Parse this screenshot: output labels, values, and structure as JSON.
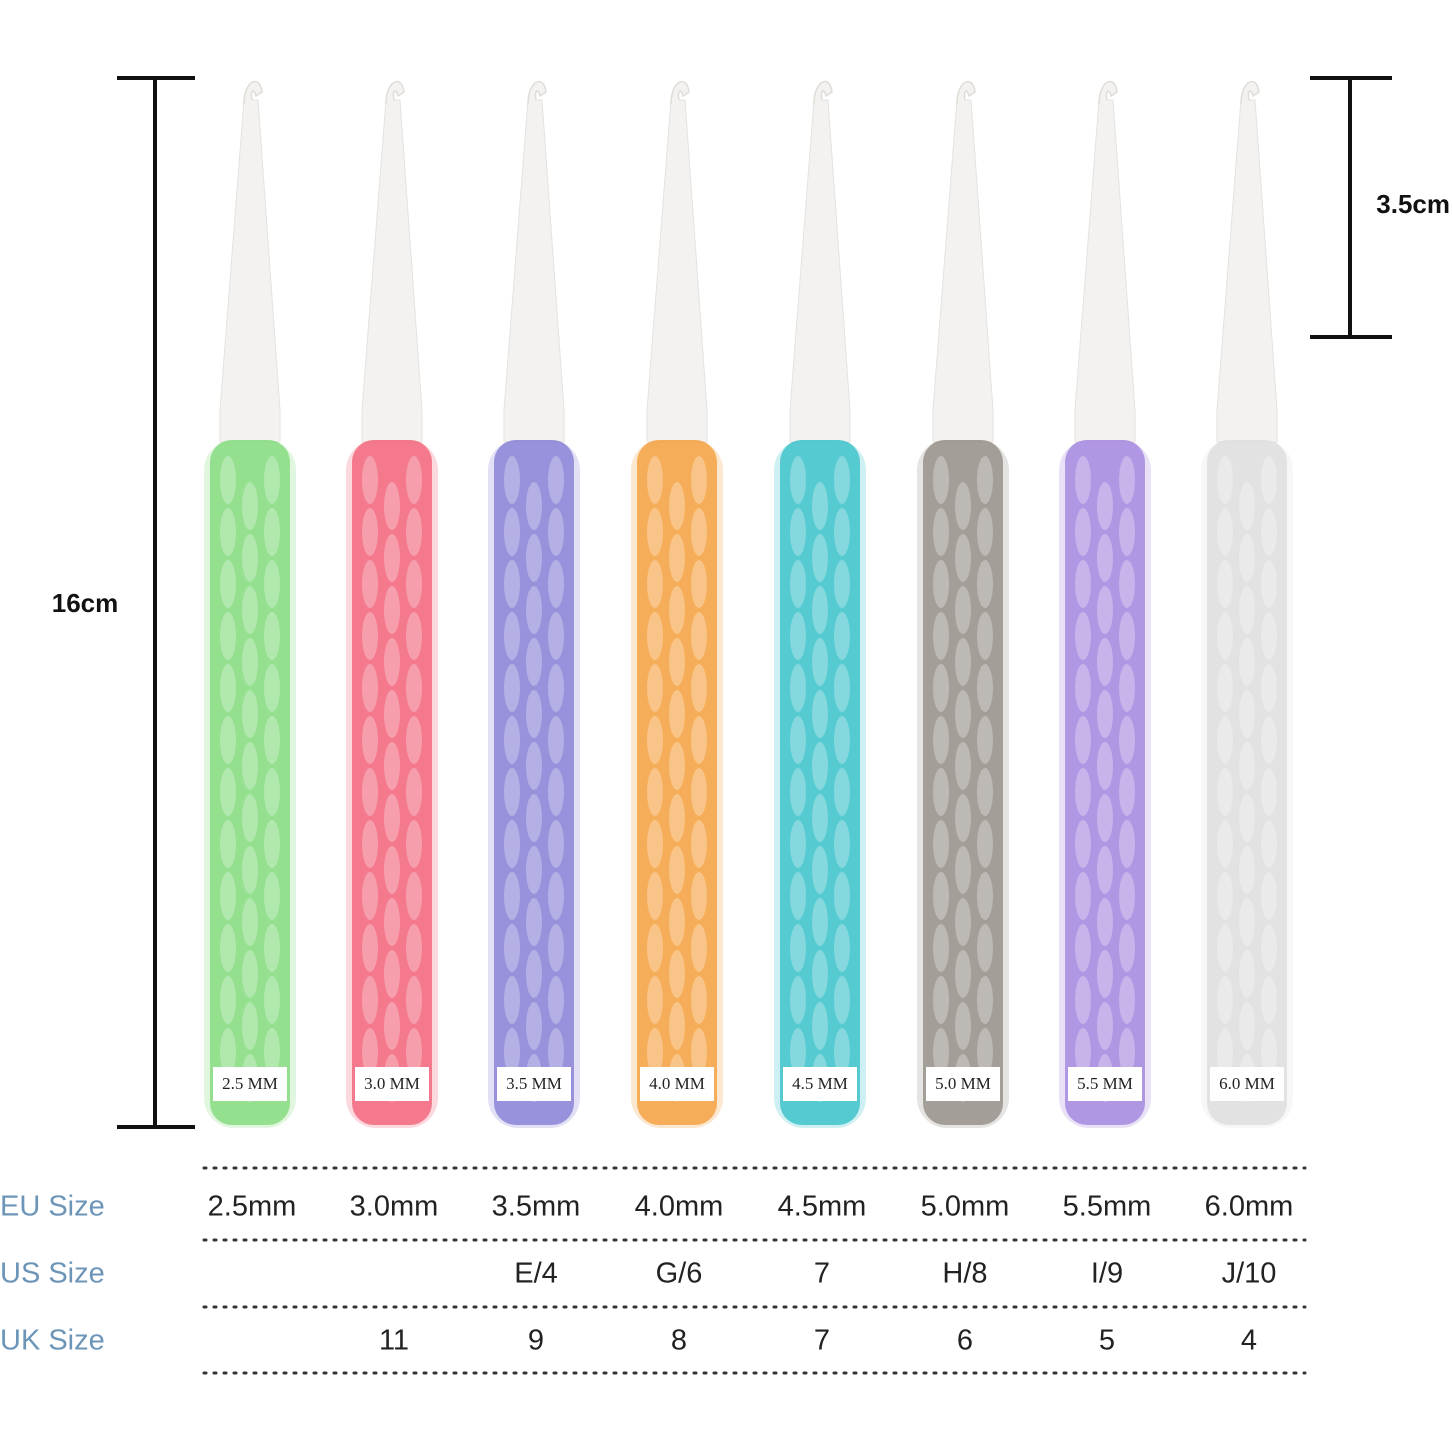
{
  "dimensions": {
    "total_length": "16cm",
    "hook_length": "3.5cm"
  },
  "hooks": [
    {
      "label": "2.5 MM",
      "color": "#86dc80"
    },
    {
      "label": "3.0 MM",
      "color": "#f2677e"
    },
    {
      "label": "3.5 MM",
      "color": "#8a84d6"
    },
    {
      "label": "4.0 MM",
      "color": "#f4a244"
    },
    {
      "label": "4.5 MM",
      "color": "#3fc3cb"
    },
    {
      "label": "5.0 MM",
      "color": "#99928b"
    },
    {
      "label": "5.5 MM",
      "color": "#a68ae0"
    },
    {
      "label": "6.0 MM",
      "color": "#dedede"
    }
  ],
  "size_table": {
    "rows": [
      {
        "label": "EU Size",
        "cells": [
          "2.5mm",
          "3.0mm",
          "3.5mm",
          "4.0mm",
          "4.5mm",
          "5.0mm",
          "5.5mm",
          "6.0mm"
        ]
      },
      {
        "label": "US Size",
        "cells": [
          null,
          null,
          "E/4",
          "G/6",
          "7",
          "H/8",
          "I/9",
          "J/10"
        ]
      },
      {
        "label": "UK Size",
        "cells": [
          null,
          "11",
          "9",
          "8",
          "7",
          "6",
          "5",
          "4"
        ]
      }
    ]
  }
}
